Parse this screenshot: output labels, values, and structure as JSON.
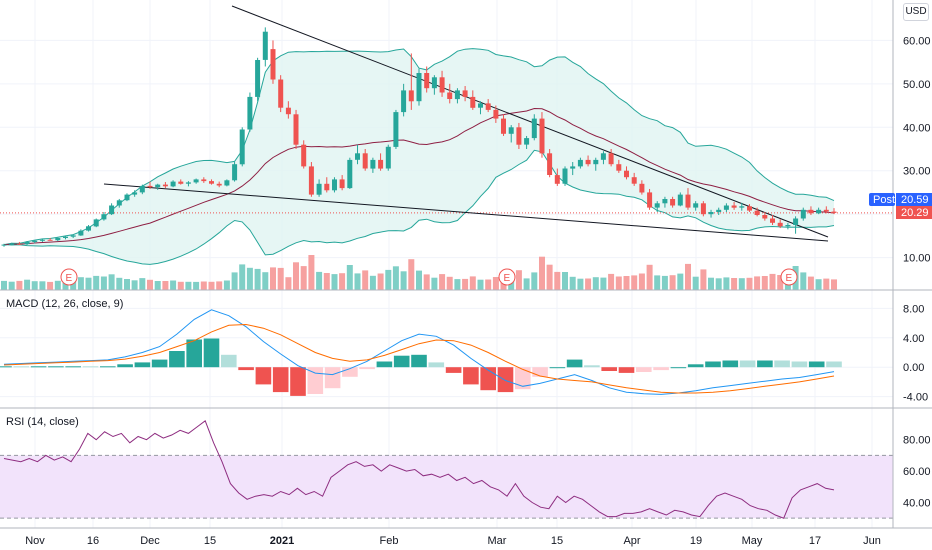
{
  "currency": "USD",
  "colors": {
    "up": "#26a69a",
    "down": "#ef5350",
    "vol_up": "#7fcfc6",
    "vol_down": "#f6a1a0",
    "bb_fill": "#e0f4f1",
    "bb_line": "#26a69a",
    "basis": "#8e1f43",
    "macd_line": "#2196f3",
    "signal_line": "#ff6d00",
    "rsi_line": "#8e2d80",
    "rsi_band": "#f2e3fb",
    "post_tag": "#2962ff",
    "last_tag": "#ef5350",
    "trend": "#131722",
    "event": "#ef5350"
  },
  "x_axis_labels": [
    "Nov",
    "16",
    "Dec",
    "15",
    "2021",
    "Feb",
    "Mar",
    "15",
    "Apr",
    "19",
    "May",
    "17",
    "Jun"
  ],
  "events": [
    "E",
    "E",
    "E"
  ],
  "price_tags": {
    "post_label": "Post",
    "post_value": "20.59",
    "last_value": "20.29"
  },
  "chart_data": [
    {
      "type": "candlestick",
      "pane": "price",
      "y_ticks": [
        "10.00",
        "20.00",
        "30.00",
        "40.00",
        "50.00",
        "60.00"
      ],
      "ylim": [
        3,
        67
      ],
      "candles": [
        [
          12.8,
          13.2,
          12.5,
          13.0
        ],
        [
          13.0,
          13.4,
          12.8,
          13.2
        ],
        [
          13.2,
          13.6,
          12.9,
          13.1
        ],
        [
          13.1,
          13.8,
          12.9,
          13.6
        ],
        [
          13.6,
          14.0,
          13.3,
          13.9
        ],
        [
          13.9,
          14.3,
          13.6,
          14.1
        ],
        [
          14.1,
          14.5,
          13.9,
          14.0
        ],
        [
          14.0,
          14.6,
          13.8,
          14.5
        ],
        [
          14.5,
          15.0,
          14.2,
          14.8
        ],
        [
          14.8,
          15.3,
          14.5,
          15.1
        ],
        [
          15.1,
          16.5,
          15.0,
          16.2
        ],
        [
          16.2,
          17.5,
          16.0,
          17.2
        ],
        [
          17.2,
          19.0,
          17.0,
          18.8
        ],
        [
          18.8,
          20.5,
          18.5,
          20.0
        ],
        [
          20.0,
          22.5,
          19.8,
          22.0
        ],
        [
          22.0,
          23.5,
          21.5,
          23.2
        ],
        [
          23.2,
          24.8,
          23.0,
          24.5
        ],
        [
          24.5,
          25.5,
          24.0,
          25.0
        ],
        [
          25.0,
          26.8,
          24.6,
          26.5
        ],
        [
          26.5,
          27.5,
          25.8,
          26.2
        ],
        [
          26.2,
          27.0,
          25.6,
          26.8
        ],
        [
          26.8,
          27.4,
          26.0,
          26.4
        ],
        [
          26.4,
          27.8,
          26.2,
          27.5
        ],
        [
          27.5,
          28.0,
          26.8,
          27.0
        ],
        [
          27.0,
          27.6,
          26.4,
          27.3
        ],
        [
          27.3,
          28.2,
          27.0,
          28.0
        ],
        [
          28.0,
          28.5,
          27.2,
          27.6
        ],
        [
          27.6,
          28.0,
          26.8,
          27.0
        ],
        [
          27.0,
          27.5,
          26.2,
          26.6
        ],
        [
          26.6,
          28.0,
          26.4,
          27.8
        ],
        [
          27.8,
          32.0,
          27.5,
          31.5
        ],
        [
          31.5,
          40.0,
          31.0,
          39.5
        ],
        [
          39.5,
          48.0,
          39.0,
          47.0
        ],
        [
          47.0,
          56.0,
          46.0,
          55.5
        ],
        [
          55.5,
          63.0,
          54.0,
          62.0
        ],
        [
          58.0,
          60.0,
          50.0,
          51.0
        ],
        [
          51.0,
          52.0,
          43.5,
          44.5
        ],
        [
          44.5,
          46.0,
          42.0,
          43.0
        ],
        [
          43.0,
          44.0,
          35.0,
          36.0
        ],
        [
          36.0,
          37.0,
          30.5,
          31.0
        ],
        [
          31.0,
          32.0,
          24.0,
          24.5
        ],
        [
          24.5,
          28.0,
          24.0,
          27.0
        ],
        [
          27.0,
          28.5,
          25.0,
          25.5
        ],
        [
          25.5,
          28.5,
          25.0,
          28.0
        ],
        [
          28.0,
          29.0,
          25.5,
          26.0
        ],
        [
          26.0,
          33.0,
          25.8,
          32.5
        ],
        [
          32.5,
          36.0,
          31.5,
          34.0
        ],
        [
          34.0,
          35.0,
          30.0,
          30.5
        ],
        [
          30.5,
          33.0,
          29.5,
          32.5
        ],
        [
          32.5,
          34.0,
          30.0,
          30.5
        ],
        [
          30.5,
          36.0,
          30.0,
          35.5
        ],
        [
          35.5,
          44.0,
          35.0,
          43.5
        ],
        [
          43.5,
          50.0,
          42.5,
          48.5
        ],
        [
          48.5,
          57.0,
          44.0,
          46.0
        ],
        [
          46.0,
          53.5,
          45.0,
          52.5
        ],
        [
          52.5,
          54.0,
          48.0,
          49.0
        ],
        [
          49.0,
          52.0,
          47.5,
          51.5
        ],
        [
          51.5,
          53.0,
          47.0,
          48.0
        ],
        [
          48.0,
          50.0,
          45.5,
          46.5
        ],
        [
          46.5,
          49.0,
          45.5,
          48.5
        ],
        [
          48.5,
          49.5,
          46.0,
          47.0
        ],
        [
          47.0,
          48.5,
          44.0,
          44.5
        ],
        [
          44.5,
          46.0,
          43.0,
          45.5
        ],
        [
          45.5,
          46.5,
          43.5,
          44.0
        ],
        [
          44.0,
          45.0,
          41.0,
          42.0
        ],
        [
          42.0,
          43.0,
          38.0,
          38.5
        ],
        [
          38.5,
          40.5,
          36.5,
          40.0
        ],
        [
          40.0,
          41.0,
          35.0,
          36.0
        ],
        [
          36.0,
          38.0,
          35.0,
          37.5
        ],
        [
          37.5,
          43.0,
          37.0,
          42.0
        ],
        [
          42.0,
          43.5,
          33.0,
          34.0
        ],
        [
          34.0,
          35.0,
          28.5,
          29.0
        ],
        [
          29.0,
          30.5,
          26.5,
          27.0
        ],
        [
          27.0,
          31.0,
          26.5,
          30.5
        ],
        [
          30.5,
          32.0,
          29.0,
          31.0
        ],
        [
          31.0,
          33.0,
          30.5,
          32.5
        ],
        [
          32.5,
          33.5,
          31.0,
          31.5
        ],
        [
          31.5,
          33.0,
          30.0,
          32.5
        ],
        [
          32.5,
          34.5,
          31.5,
          34.0
        ],
        [
          34.0,
          35.0,
          31.0,
          31.5
        ],
        [
          31.5,
          32.5,
          29.5,
          30.0
        ],
        [
          30.0,
          31.0,
          28.0,
          28.5
        ],
        [
          28.5,
          29.5,
          26.5,
          27.0
        ],
        [
          27.0,
          27.8,
          24.5,
          25.0
        ],
        [
          25.0,
          25.8,
          21.0,
          21.5
        ],
        [
          21.5,
          23.0,
          20.5,
          22.5
        ],
        [
          22.5,
          24.0,
          21.5,
          23.5
        ],
        [
          23.5,
          24.0,
          21.5,
          22.0
        ],
        [
          22.0,
          25.0,
          21.8,
          24.5
        ],
        [
          24.5,
          26.0,
          21.0,
          21.5
        ],
        [
          21.5,
          23.0,
          20.8,
          22.5
        ],
        [
          22.5,
          23.0,
          19.5,
          20.0
        ],
        [
          20.0,
          21.0,
          19.2,
          20.5
        ],
        [
          20.5,
          21.5,
          19.8,
          21.0
        ],
        [
          21.0,
          22.5,
          20.5,
          22.0
        ],
        [
          22.0,
          22.8,
          21.0,
          21.5
        ],
        [
          21.5,
          22.6,
          20.8,
          21.8
        ],
        [
          21.8,
          22.3,
          20.5,
          20.8
        ],
        [
          20.8,
          21.5,
          19.5,
          19.8
        ],
        [
          19.8,
          20.5,
          18.5,
          19.0
        ],
        [
          19.0,
          19.8,
          17.5,
          18.0
        ],
        [
          18.0,
          18.8,
          16.8,
          17.2
        ],
        [
          17.2,
          18.0,
          16.5,
          17.5
        ],
        [
          17.5,
          19.5,
          15.5,
          19.0
        ],
        [
          19.0,
          21.5,
          18.5,
          21.0
        ],
        [
          21.0,
          21.8,
          19.8,
          20.2
        ],
        [
          20.2,
          21.5,
          20.0,
          21.0
        ],
        [
          21.0,
          21.8,
          20.2,
          20.6
        ],
        [
          20.6,
          21.4,
          20.0,
          20.29
        ]
      ]
    },
    {
      "type": "line",
      "pane": "macd",
      "title": "MACD (12, 26, close, 9)",
      "y_ticks": [
        "8.00",
        "4.00",
        "0.00",
        "-4.00"
      ],
      "ylim": [
        -5,
        9
      ],
      "series": [
        {
          "role": "macd",
          "values": [
            0.4,
            0.5,
            0.6,
            0.7,
            0.8,
            0.9,
            1.0,
            1.4,
            2.0,
            2.8,
            4.5,
            6.5,
            7.8,
            7.0,
            5.5,
            3.5,
            1.8,
            0.2,
            -0.8,
            -1.0,
            -0.2,
            0.8,
            2.2,
            3.6,
            4.5,
            4.2,
            3.0,
            1.2,
            -0.4,
            -1.8,
            -2.6,
            -2.2,
            -1.6,
            -1.0,
            -1.8,
            -2.8,
            -3.4,
            -3.6,
            -3.7,
            -3.5,
            -3.2,
            -2.8,
            -2.5,
            -2.2,
            -1.9,
            -1.6,
            -1.4,
            -1.0,
            -0.6
          ]
        },
        {
          "role": "signal",
          "values": [
            0.3,
            0.4,
            0.5,
            0.6,
            0.7,
            0.8,
            0.9,
            1.1,
            1.5,
            2.0,
            2.8,
            3.6,
            4.8,
            5.7,
            5.8,
            5.3,
            4.4,
            3.2,
            2.0,
            1.2,
            0.8,
            1.0,
            1.6,
            2.4,
            3.2,
            3.7,
            3.6,
            3.0,
            2.0,
            0.8,
            -0.3,
            -1.2,
            -1.6,
            -1.8,
            -2.0,
            -2.4,
            -2.8,
            -3.1,
            -3.4,
            -3.5,
            -3.5,
            -3.4,
            -3.2,
            -2.9,
            -2.6,
            -2.3,
            -2.0,
            -1.6,
            -1.2
          ]
        }
      ]
    },
    {
      "type": "line",
      "pane": "rsi",
      "title": "RSI (14, close)",
      "y_ticks": [
        "80.00",
        "60.00",
        "40.00"
      ],
      "ylim": [
        25,
        97
      ],
      "upper_band": 70,
      "lower_band": 30,
      "values": [
        68,
        67,
        66,
        68,
        66,
        70,
        67,
        69,
        66,
        74,
        84,
        80,
        85,
        82,
        84,
        78,
        82,
        80,
        84,
        81,
        83,
        86,
        84,
        88,
        92,
        78,
        66,
        52,
        46,
        42,
        44,
        45,
        44,
        47,
        45,
        49,
        45,
        47,
        44,
        56,
        60,
        64,
        66,
        63,
        64,
        60,
        64,
        62,
        60,
        61,
        57,
        58,
        56,
        58,
        54,
        56,
        52,
        54,
        50,
        48,
        44,
        52,
        44,
        40,
        37,
        36,
        44,
        40,
        44,
        42,
        38,
        34,
        31,
        31,
        33,
        33,
        34,
        36,
        34,
        32,
        35,
        34,
        32,
        31,
        38,
        44,
        46,
        44,
        42,
        38,
        36,
        35,
        32,
        30,
        43,
        48,
        50,
        52,
        49,
        48
      ]
    }
  ]
}
